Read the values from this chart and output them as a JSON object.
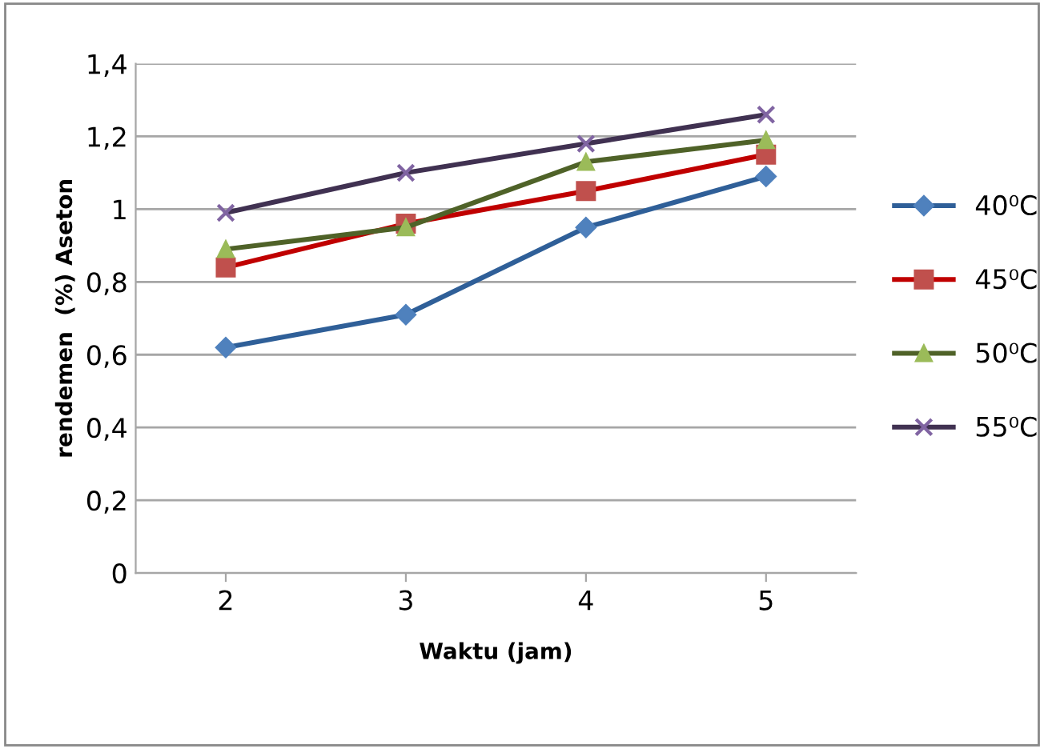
{
  "chart_data": {
    "type": "line",
    "xlabel": "Waktu (jam)",
    "ylabel": "rendemen  (%) Aseton",
    "categories": [
      "2",
      "3",
      "4",
      "5"
    ],
    "series": [
      {
        "name": "40⁰C",
        "color": "#4f81bd",
        "marker": "diamond",
        "values": [
          0.62,
          0.71,
          0.95,
          1.09
        ]
      },
      {
        "name": "45⁰C",
        "color": "#c0504d",
        "marker": "square",
        "values": [
          0.84,
          0.96,
          1.05,
          1.15
        ]
      },
      {
        "name": "50⁰C",
        "color": "#9bbb59",
        "marker": "triangle",
        "values": [
          0.89,
          0.95,
          1.13,
          1.19
        ]
      },
      {
        "name": "55⁰C",
        "color": "#8064a2",
        "marker": "cross",
        "values": [
          0.99,
          1.1,
          1.18,
          1.26
        ]
      }
    ],
    "ylim": [
      0,
      1.4
    ],
    "yticks": [
      0,
      {
        "value": 0.2,
        "label": "0,2"
      },
      {
        "value": 0.4,
        "label": "0,4"
      },
      {
        "value": 0.6,
        "label": "0,6"
      },
      {
        "value": 0.8,
        "label": "0,8"
      },
      1,
      {
        "value": 1.2,
        "label": "1,2"
      },
      {
        "value": 1.4,
        "label": "1,4"
      }
    ],
    "grid": "y",
    "legend": "right"
  }
}
